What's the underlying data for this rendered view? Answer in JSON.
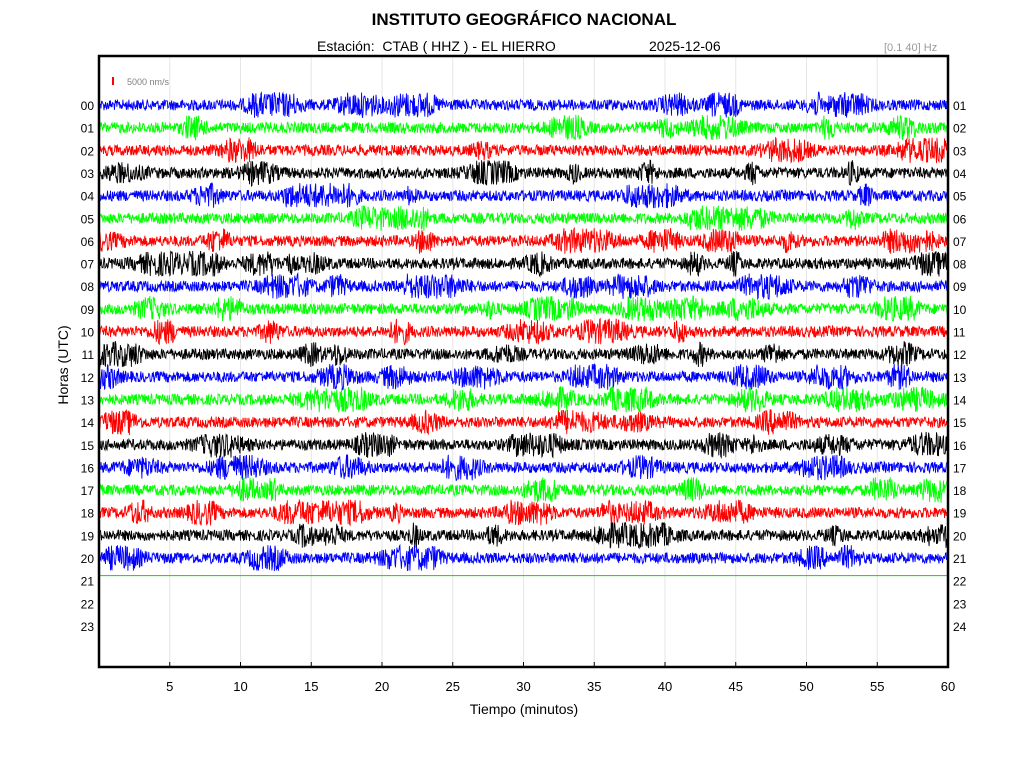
{
  "header": {
    "title": "INSTITUTO GEOGRÁFICO NACIONAL",
    "station_label": "Estación:",
    "station": "CTAB ( HHZ ) - EL HIERRO",
    "date": "2025-12-06",
    "filter": "[0.1 40] Hz"
  },
  "scale": {
    "label": "5000 nm/s",
    "color": "#ff0000"
  },
  "chart_data": {
    "type": "line",
    "title": "INSTITUTO GEOGRÁFICO NACIONAL",
    "xlabel": "Tiempo (minutos)",
    "ylabel": "Horas (UTC)",
    "xlim": [
      0,
      60
    ],
    "x_ticks": [
      5,
      10,
      15,
      20,
      25,
      30,
      35,
      40,
      45,
      50,
      55,
      60
    ],
    "left_hour_labels": [
      "00",
      "01",
      "02",
      "03",
      "04",
      "05",
      "06",
      "07",
      "08",
      "09",
      "10",
      "11",
      "12",
      "13",
      "14",
      "15",
      "16",
      "17",
      "18",
      "19",
      "20",
      "21",
      "22",
      "23"
    ],
    "right_hour_labels": [
      "01",
      "02",
      "03",
      "04",
      "05",
      "06",
      "07",
      "08",
      "09",
      "10",
      "11",
      "12",
      "13",
      "14",
      "15",
      "16",
      "17",
      "18",
      "19",
      "20",
      "21",
      "22",
      "23",
      "24"
    ],
    "trace_colors": [
      "#0000ff",
      "#00ff00",
      "#ff0000",
      "#000000"
    ],
    "recorded_hours": 21,
    "current_time_line": {
      "hour": "21",
      "minute": 0,
      "color": "#00dd00"
    },
    "grid": true
  }
}
